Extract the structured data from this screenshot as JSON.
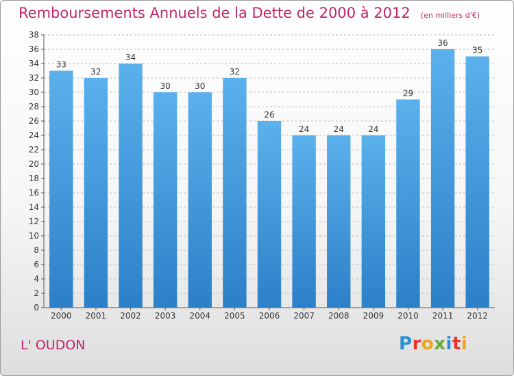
{
  "chart_data": {
    "type": "bar",
    "title": "Remboursements Annuels de la Dette de 2000 à 2012",
    "unit": "(en milliers d'€)",
    "categories": [
      "2000",
      "2001",
      "2002",
      "2003",
      "2004",
      "2005",
      "2006",
      "2007",
      "2008",
      "2009",
      "2010",
      "2011",
      "2012"
    ],
    "values": [
      33,
      32,
      34,
      30,
      30,
      32,
      26,
      24,
      24,
      24,
      29,
      36,
      35
    ],
    "ylim": [
      0,
      38
    ],
    "ytick_step": 2,
    "xlabel": "",
    "ylabel": "",
    "grid": true,
    "colors": {
      "bar_top": "#5ab1ec",
      "bar_bottom": "#2c80c8",
      "title": "#c0266a",
      "grid": "#bbbbbb"
    }
  },
  "footer": {
    "commune": "L' OUDON",
    "brand": "Proxiti",
    "brand_colors": [
      "#2a8fd6",
      "#e8342c",
      "#f2a21a",
      "#6aa83a",
      "#2a8fd6",
      "#e8342c",
      "#f2a21a"
    ]
  }
}
